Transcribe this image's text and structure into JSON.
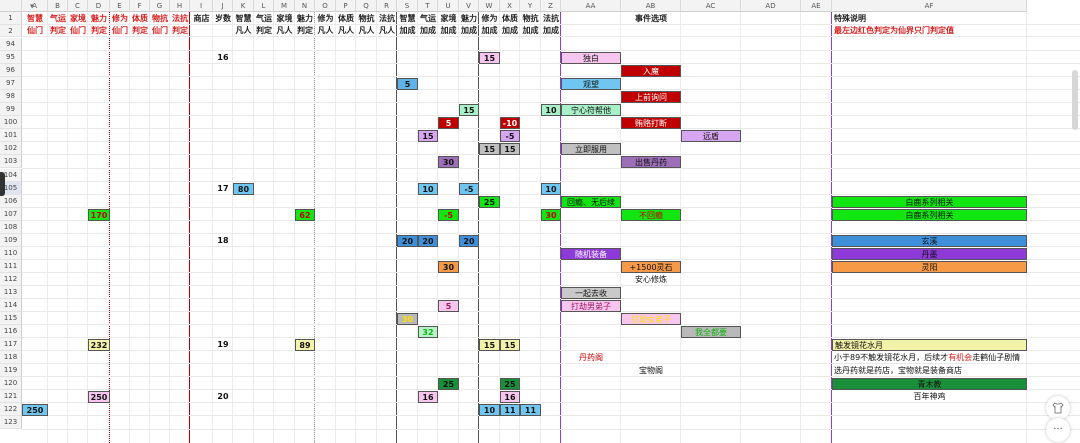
{
  "columns": [
    "A",
    "B",
    "C",
    "D",
    "E",
    "F",
    "G",
    "H",
    "I",
    "J",
    "K",
    "L",
    "M",
    "N",
    "O",
    "P",
    "Q",
    "R",
    "S",
    "T",
    "U",
    "V",
    "W",
    "X",
    "Y",
    "Z",
    "AA",
    "AB",
    "AC",
    "AD",
    "AE",
    "AF"
  ],
  "header_row1": {
    "A": "智慧",
    "B": "气运",
    "C": "家境",
    "D": "魅力",
    "E": "修为",
    "F": "体质",
    "G": "物抗",
    "H": "法抗",
    "I": "商店",
    "J": "岁数",
    "K": "智慧",
    "L": "气运",
    "M": "家境",
    "N": "魅力",
    "O": "修为",
    "P": "体质",
    "Q": "物抗",
    "R": "法抗",
    "S": "智慧",
    "T": "气运",
    "U": "家境",
    "V": "魅力",
    "W": "修为",
    "X": "体质",
    "Y": "物抗",
    "Z": "法抗",
    "AB": "事件选项",
    "AF": "特殊说明"
  },
  "header_row2": {
    "A": "仙门",
    "B": "判定",
    "C": "仙门",
    "D": "判定",
    "E": "仙门",
    "F": "判定",
    "G": "仙门",
    "H": "判定",
    "K": "凡人",
    "L": "判定",
    "M": "凡人",
    "N": "判定",
    "O": "凡人",
    "P": "凡人",
    "Q": "凡人",
    "R": "凡人",
    "S": "加成",
    "T": "加成",
    "U": "加成",
    "V": "加成",
    "W": "加成",
    "X": "加成",
    "Y": "加成",
    "Z": "加成",
    "AF": "最左边红色判定为仙界只门判定值"
  },
  "rows": [
    "94",
    "95",
    "96",
    "97",
    "98",
    "99",
    "100",
    "101",
    "102",
    "103",
    "104",
    "105",
    "106",
    "107",
    "108",
    "109",
    "110",
    "111",
    "112",
    "113",
    "114",
    "115",
    "116",
    "117",
    "118",
    "119",
    "120",
    "121",
    "122",
    "123"
  ],
  "cells": [
    {
      "r": "95",
      "c": "J",
      "v": "16"
    },
    {
      "r": "95",
      "c": "W",
      "v": "15",
      "bg": "#f7c6ef"
    },
    {
      "r": "95",
      "c": "AA",
      "v": "独白",
      "bg": "#f7c6ef"
    },
    {
      "r": "96",
      "c": "AB",
      "v": "入魔",
      "bg": "#c00000",
      "fg": "#ffffff"
    },
    {
      "r": "97",
      "c": "S",
      "v": "5",
      "bg": "#5fb3e8"
    },
    {
      "r": "97",
      "c": "AA",
      "v": "观望",
      "bg": "#6fc6f0"
    },
    {
      "r": "98",
      "c": "AB",
      "v": "上前询问",
      "bg": "#c00000",
      "fg": "#ffffff"
    },
    {
      "r": "99",
      "c": "V",
      "v": "15",
      "bg": "#a8f0c8"
    },
    {
      "r": "99",
      "c": "Z",
      "v": "10",
      "bg": "#a8f0c8"
    },
    {
      "r": "99",
      "c": "AA",
      "v": "宁心符帮他",
      "bg": "#a8f0c8"
    },
    {
      "r": "100",
      "c": "U",
      "v": "5",
      "bg": "#c00000",
      "fg": "#ffffff"
    },
    {
      "r": "100",
      "c": "X",
      "v": "-10",
      "bg": "#c00000",
      "fg": "#ffffff"
    },
    {
      "r": "100",
      "c": "AB",
      "v": "贿赂打断",
      "bg": "#c00000",
      "fg": "#ffffff"
    },
    {
      "r": "101",
      "c": "T",
      "v": "15",
      "bg": "#d7a6f2"
    },
    {
      "r": "101",
      "c": "X",
      "v": "-5",
      "bg": "#d7a6f2"
    },
    {
      "r": "101",
      "c": "AC",
      "v": "远盾",
      "bg": "#d7a6f2"
    },
    {
      "r": "102",
      "c": "W",
      "v": "15",
      "bg": "#c0c0c0"
    },
    {
      "r": "102",
      "c": "X",
      "v": "15",
      "bg": "#c0c0c0"
    },
    {
      "r": "102",
      "c": "AA",
      "v": "立即服用",
      "bg": "#c0c0c0"
    },
    {
      "r": "103",
      "c": "U",
      "v": "30",
      "bg": "#9c6fb8"
    },
    {
      "r": "103",
      "c": "AB",
      "v": "出售丹药",
      "bg": "#9c6fb8"
    },
    {
      "r": "105",
      "c": "J",
      "v": "17"
    },
    {
      "r": "105",
      "c": "K",
      "v": "80",
      "bg": "#6fc6f0"
    },
    {
      "r": "105",
      "c": "T",
      "v": "10",
      "bg": "#6fc6f0"
    },
    {
      "r": "105",
      "c": "V",
      "v": "-5",
      "bg": "#6fc6f0"
    },
    {
      "r": "105",
      "c": "Z",
      "v": "10",
      "bg": "#6fc6f0"
    },
    {
      "r": "106",
      "c": "W",
      "v": "25",
      "bg": "#11e611"
    },
    {
      "r": "106",
      "c": "AA",
      "v": "回瘾、无后续",
      "bg": "#11e611"
    },
    {
      "r": "106",
      "c": "AF",
      "v": "白鹿系列相关",
      "bg": "#11e611"
    },
    {
      "r": "107",
      "c": "D",
      "v": "170",
      "bg": "#11e611",
      "fg": "#c00000"
    },
    {
      "r": "107",
      "c": "N",
      "v": "62",
      "bg": "#11e611",
      "fg": "#c00000"
    },
    {
      "r": "107",
      "c": "U",
      "v": "-5",
      "bg": "#11e611",
      "fg": "#c00000"
    },
    {
      "r": "107",
      "c": "Z",
      "v": "30",
      "bg": "#11e611",
      "fg": "#c00000"
    },
    {
      "r": "107",
      "c": "AB",
      "v": "不回瘾",
      "bg": "#11e611",
      "fg": "#c00000"
    },
    {
      "r": "107",
      "c": "AF",
      "v": "白鹿系列相关",
      "bg": "#11e611"
    },
    {
      "r": "109",
      "c": "J",
      "v": "18"
    },
    {
      "r": "109",
      "c": "S",
      "v": "20",
      "bg": "#3d8fd9"
    },
    {
      "r": "109",
      "c": "T",
      "v": "20",
      "bg": "#3d8fd9"
    },
    {
      "r": "109",
      "c": "V",
      "v": "20",
      "bg": "#3d8fd9"
    },
    {
      "r": "109",
      "c": "AF",
      "v": "玄溪",
      "bg": "#3d8fd9"
    },
    {
      "r": "110",
      "c": "AA",
      "v": "随机装备",
      "bg": "#8e3ad9",
      "fg": "#ffffff"
    },
    {
      "r": "110",
      "c": "AF",
      "v": "丹墨",
      "bg": "#8e3ad9"
    },
    {
      "r": "111",
      "c": "U",
      "v": "30",
      "bg": "#f79a48"
    },
    {
      "r": "111",
      "c": "AB",
      "v": "+1500灵石",
      "bg": "#f79a48"
    },
    {
      "r": "111",
      "c": "AF",
      "v": "灵阳",
      "bg": "#f79a48"
    },
    {
      "r": "112",
      "c": "AB",
      "v": "安心修炼"
    },
    {
      "r": "113",
      "c": "AA",
      "v": "一起去收",
      "bg": "#c9c9c9"
    },
    {
      "r": "114",
      "c": "U",
      "v": "5",
      "bg": "#f7c6ef",
      "fg": "#a0185a"
    },
    {
      "r": "114",
      "c": "AA",
      "v": "打劫男弟子",
      "bg": "#f7c6ef",
      "fg": "#a0185a"
    },
    {
      "r": "115",
      "c": "S",
      "v": "30",
      "bg": "#b9b9b9",
      "fg": "#ffe000"
    },
    {
      "r": "115",
      "c": "AB",
      "v": "打劫女弟子",
      "bg": "#f7c6ef",
      "fg": "#ffe000"
    },
    {
      "r": "116",
      "c": "T",
      "v": "32",
      "bg": "#b8f2c8",
      "fg": "#11b111"
    },
    {
      "r": "116",
      "c": "AC",
      "v": "我全都要",
      "bg": "#b9b9b9",
      "fg": "#11b111"
    },
    {
      "r": "117",
      "c": "D",
      "v": "232",
      "bg": "#f2f2a8"
    },
    {
      "r": "117",
      "c": "J",
      "v": "19"
    },
    {
      "r": "117",
      "c": "N",
      "v": "89",
      "bg": "#f2f2a8"
    },
    {
      "r": "117",
      "c": "W",
      "v": "15",
      "bg": "#f2f2a8"
    },
    {
      "r": "117",
      "c": "X",
      "v": "15",
      "bg": "#f2f2a8"
    },
    {
      "r": "117",
      "c": "AF",
      "v": "触发镜花水月",
      "bg": "#f2f2a8",
      "align": "left"
    },
    {
      "r": "118",
      "c": "AA",
      "v": "丹药阁",
      "fg": "#c00000"
    },
    {
      "r": "119",
      "c": "AB",
      "v": "宝物阁"
    },
    {
      "r": "119",
      "c": "AF",
      "v": "选丹药就是药店，宝物就是装备商店",
      "align": "left"
    },
    {
      "r": "120",
      "c": "U",
      "v": "25",
      "bg": "#1a8f3a"
    },
    {
      "r": "120",
      "c": "X",
      "v": "25",
      "bg": "#1a8f3a"
    },
    {
      "r": "120",
      "c": "AF",
      "v": "青木教",
      "bg": "#1a8f3a"
    },
    {
      "r": "121",
      "c": "D",
      "v": "250",
      "bg": "#f7c6ef"
    },
    {
      "r": "121",
      "c": "J",
      "v": "20"
    },
    {
      "r": "121",
      "c": "T",
      "v": "16",
      "bg": "#f7c6ef"
    },
    {
      "r": "121",
      "c": "X",
      "v": "16",
      "bg": "#f7c6ef"
    },
    {
      "r": "121",
      "c": "AF",
      "v": "百年神鸡"
    },
    {
      "r": "122",
      "c": "A",
      "v": "250",
      "bg": "#6fc6f0"
    },
    {
      "r": "122",
      "c": "W",
      "v": "10",
      "bg": "#6fc6f0"
    },
    {
      "r": "122",
      "c": "X",
      "v": "11",
      "bg": "#6fc6f0"
    },
    {
      "r": "122",
      "c": "Y",
      "v": "11",
      "bg": "#6fc6f0"
    }
  ],
  "note_118": {
    "part1": "小于89不触发镜花水月，后续才",
    "part2": "有机会",
    "part3": "走鹤仙子剧情"
  },
  "colors": {
    "header_red": "#d62020",
    "header_black": "#222222"
  },
  "icons": {
    "filter": "caret-down-icon",
    "shirt": "shirt-icon",
    "more": "more-icon"
  },
  "fab_more_label": "···"
}
